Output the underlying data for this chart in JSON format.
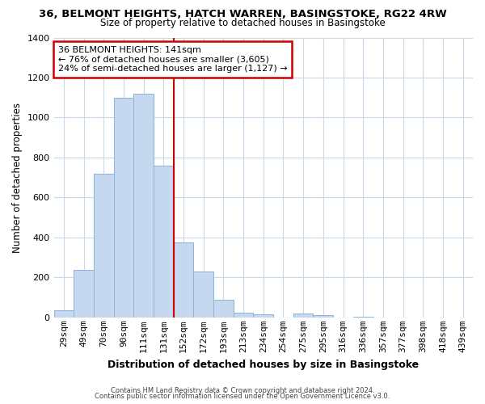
{
  "title": "36, BELMONT HEIGHTS, HATCH WARREN, BASINGSTOKE, RG22 4RW",
  "subtitle": "Size of property relative to detached houses in Basingstoke",
  "xlabel": "Distribution of detached houses by size in Basingstoke",
  "ylabel": "Number of detached properties",
  "bar_labels": [
    "29sqm",
    "49sqm",
    "70sqm",
    "90sqm",
    "111sqm",
    "131sqm",
    "152sqm",
    "172sqm",
    "193sqm",
    "213sqm",
    "234sqm",
    "254sqm",
    "275sqm",
    "295sqm",
    "316sqm",
    "336sqm",
    "357sqm",
    "377sqm",
    "398sqm",
    "418sqm",
    "439sqm"
  ],
  "bar_values": [
    35,
    240,
    720,
    1100,
    1120,
    760,
    375,
    230,
    90,
    25,
    15,
    0,
    20,
    10,
    0,
    5,
    0,
    0,
    0,
    0,
    0
  ],
  "bar_color": "#c5d8f0",
  "bar_edge_color": "#8ab4d8",
  "marker_line_color": "#cc0000",
  "annotation_line1": "36 BELMONT HEIGHTS: 141sqm",
  "annotation_line2": "← 76% of detached houses are smaller (3,605)",
  "annotation_line3": "24% of semi-detached houses are larger (1,127) →",
  "annotation_box_color": "#ffffff",
  "annotation_box_edge": "#cc0000",
  "ylim": [
    0,
    1400
  ],
  "yticks": [
    0,
    200,
    400,
    600,
    800,
    1000,
    1200,
    1400
  ],
  "footer_line1": "Contains HM Land Registry data © Crown copyright and database right 2024.",
  "footer_line2": "Contains public sector information licensed under the Open Government Licence v3.0.",
  "background_color": "#ffffff",
  "grid_color": "#c8d8e8",
  "title_fontsize": 9.5,
  "subtitle_fontsize": 8.5,
  "ylabel_fontsize": 8.5,
  "xlabel_fontsize": 9,
  "tick_fontsize": 8,
  "annotation_fontsize": 8,
  "footer_fontsize": 6
}
